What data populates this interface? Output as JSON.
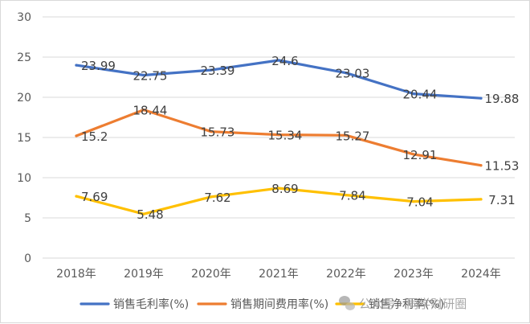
{
  "chart_data": {
    "type": "line",
    "categories": [
      "2018年",
      "2019年",
      "2020年",
      "2021年",
      "2022年",
      "2023年",
      "2024年"
    ],
    "ylim": [
      0,
      30
    ],
    "yticks": [
      0,
      5,
      10,
      15,
      20,
      25,
      30
    ],
    "grid": "horizontal",
    "legend_position": "bottom",
    "series": [
      {
        "name": "销售毛利率(%)",
        "color": "#4472c4",
        "values": [
          23.99,
          22.75,
          23.39,
          24.6,
          23.03,
          20.44,
          19.88
        ],
        "labels": [
          "23.99",
          "22.75",
          "23.39",
          "24.6",
          "23.03",
          "20.44",
          "19.88"
        ]
      },
      {
        "name": "销售期间费用率(%)",
        "color": "#ed7d31",
        "values": [
          15.2,
          18.44,
          15.73,
          15.34,
          15.27,
          12.91,
          11.53
        ],
        "labels": [
          "15.2",
          "18.44",
          "15.73",
          "15.34",
          "15.27",
          "12.91",
          "11.53"
        ]
      },
      {
        "name": "销售净利率(%)",
        "color": "#ffc000",
        "values": [
          7.69,
          5.48,
          7.62,
          8.69,
          7.84,
          7.04,
          7.31
        ],
        "labels": [
          "7.69",
          "5.48",
          "7.62",
          "8.69",
          "7.84",
          "7.04",
          "7.31"
        ]
      }
    ]
  },
  "watermark": {
    "text": "公众号 · 同学财研圈",
    "icon": "wechat-icon"
  }
}
